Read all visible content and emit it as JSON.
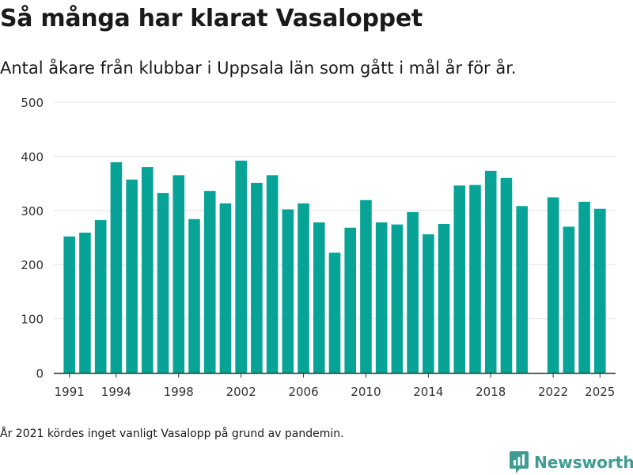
{
  "brand": {
    "name": "Newsworthy",
    "accent": "#06a396",
    "logo_color": "#3e9c91"
  },
  "chart_data": {
    "type": "bar",
    "title": "Så många har klarat Vasaloppet",
    "subtitle": "Antal åkare från klubbar i Uppsala län som gått i mål år för år.",
    "note": "År 2021 kördes inget vanligt Vasalopp på grund av pandemin.",
    "xlabel": "",
    "ylabel": "",
    "ylim": [
      0,
      500
    ],
    "yticks": [
      0,
      100,
      200,
      300,
      400,
      500
    ],
    "xticks": [
      1991,
      1994,
      1998,
      2002,
      2006,
      2010,
      2014,
      2018,
      2022,
      2025
    ],
    "grid": true,
    "bar_color": "#06a396",
    "x": [
      1991,
      1992,
      1993,
      1994,
      1995,
      1996,
      1997,
      1998,
      1999,
      2000,
      2001,
      2002,
      2003,
      2004,
      2005,
      2006,
      2007,
      2008,
      2009,
      2010,
      2011,
      2012,
      2013,
      2014,
      2015,
      2016,
      2017,
      2018,
      2019,
      2020,
      2022,
      2023,
      2024,
      2025
    ],
    "values": [
      252,
      259,
      282,
      389,
      357,
      380,
      332,
      365,
      284,
      336,
      313,
      392,
      351,
      365,
      302,
      313,
      278,
      222,
      268,
      319,
      278,
      274,
      297,
      256,
      275,
      346,
      347,
      373,
      360,
      308,
      324,
      270,
      316,
      303
    ]
  }
}
